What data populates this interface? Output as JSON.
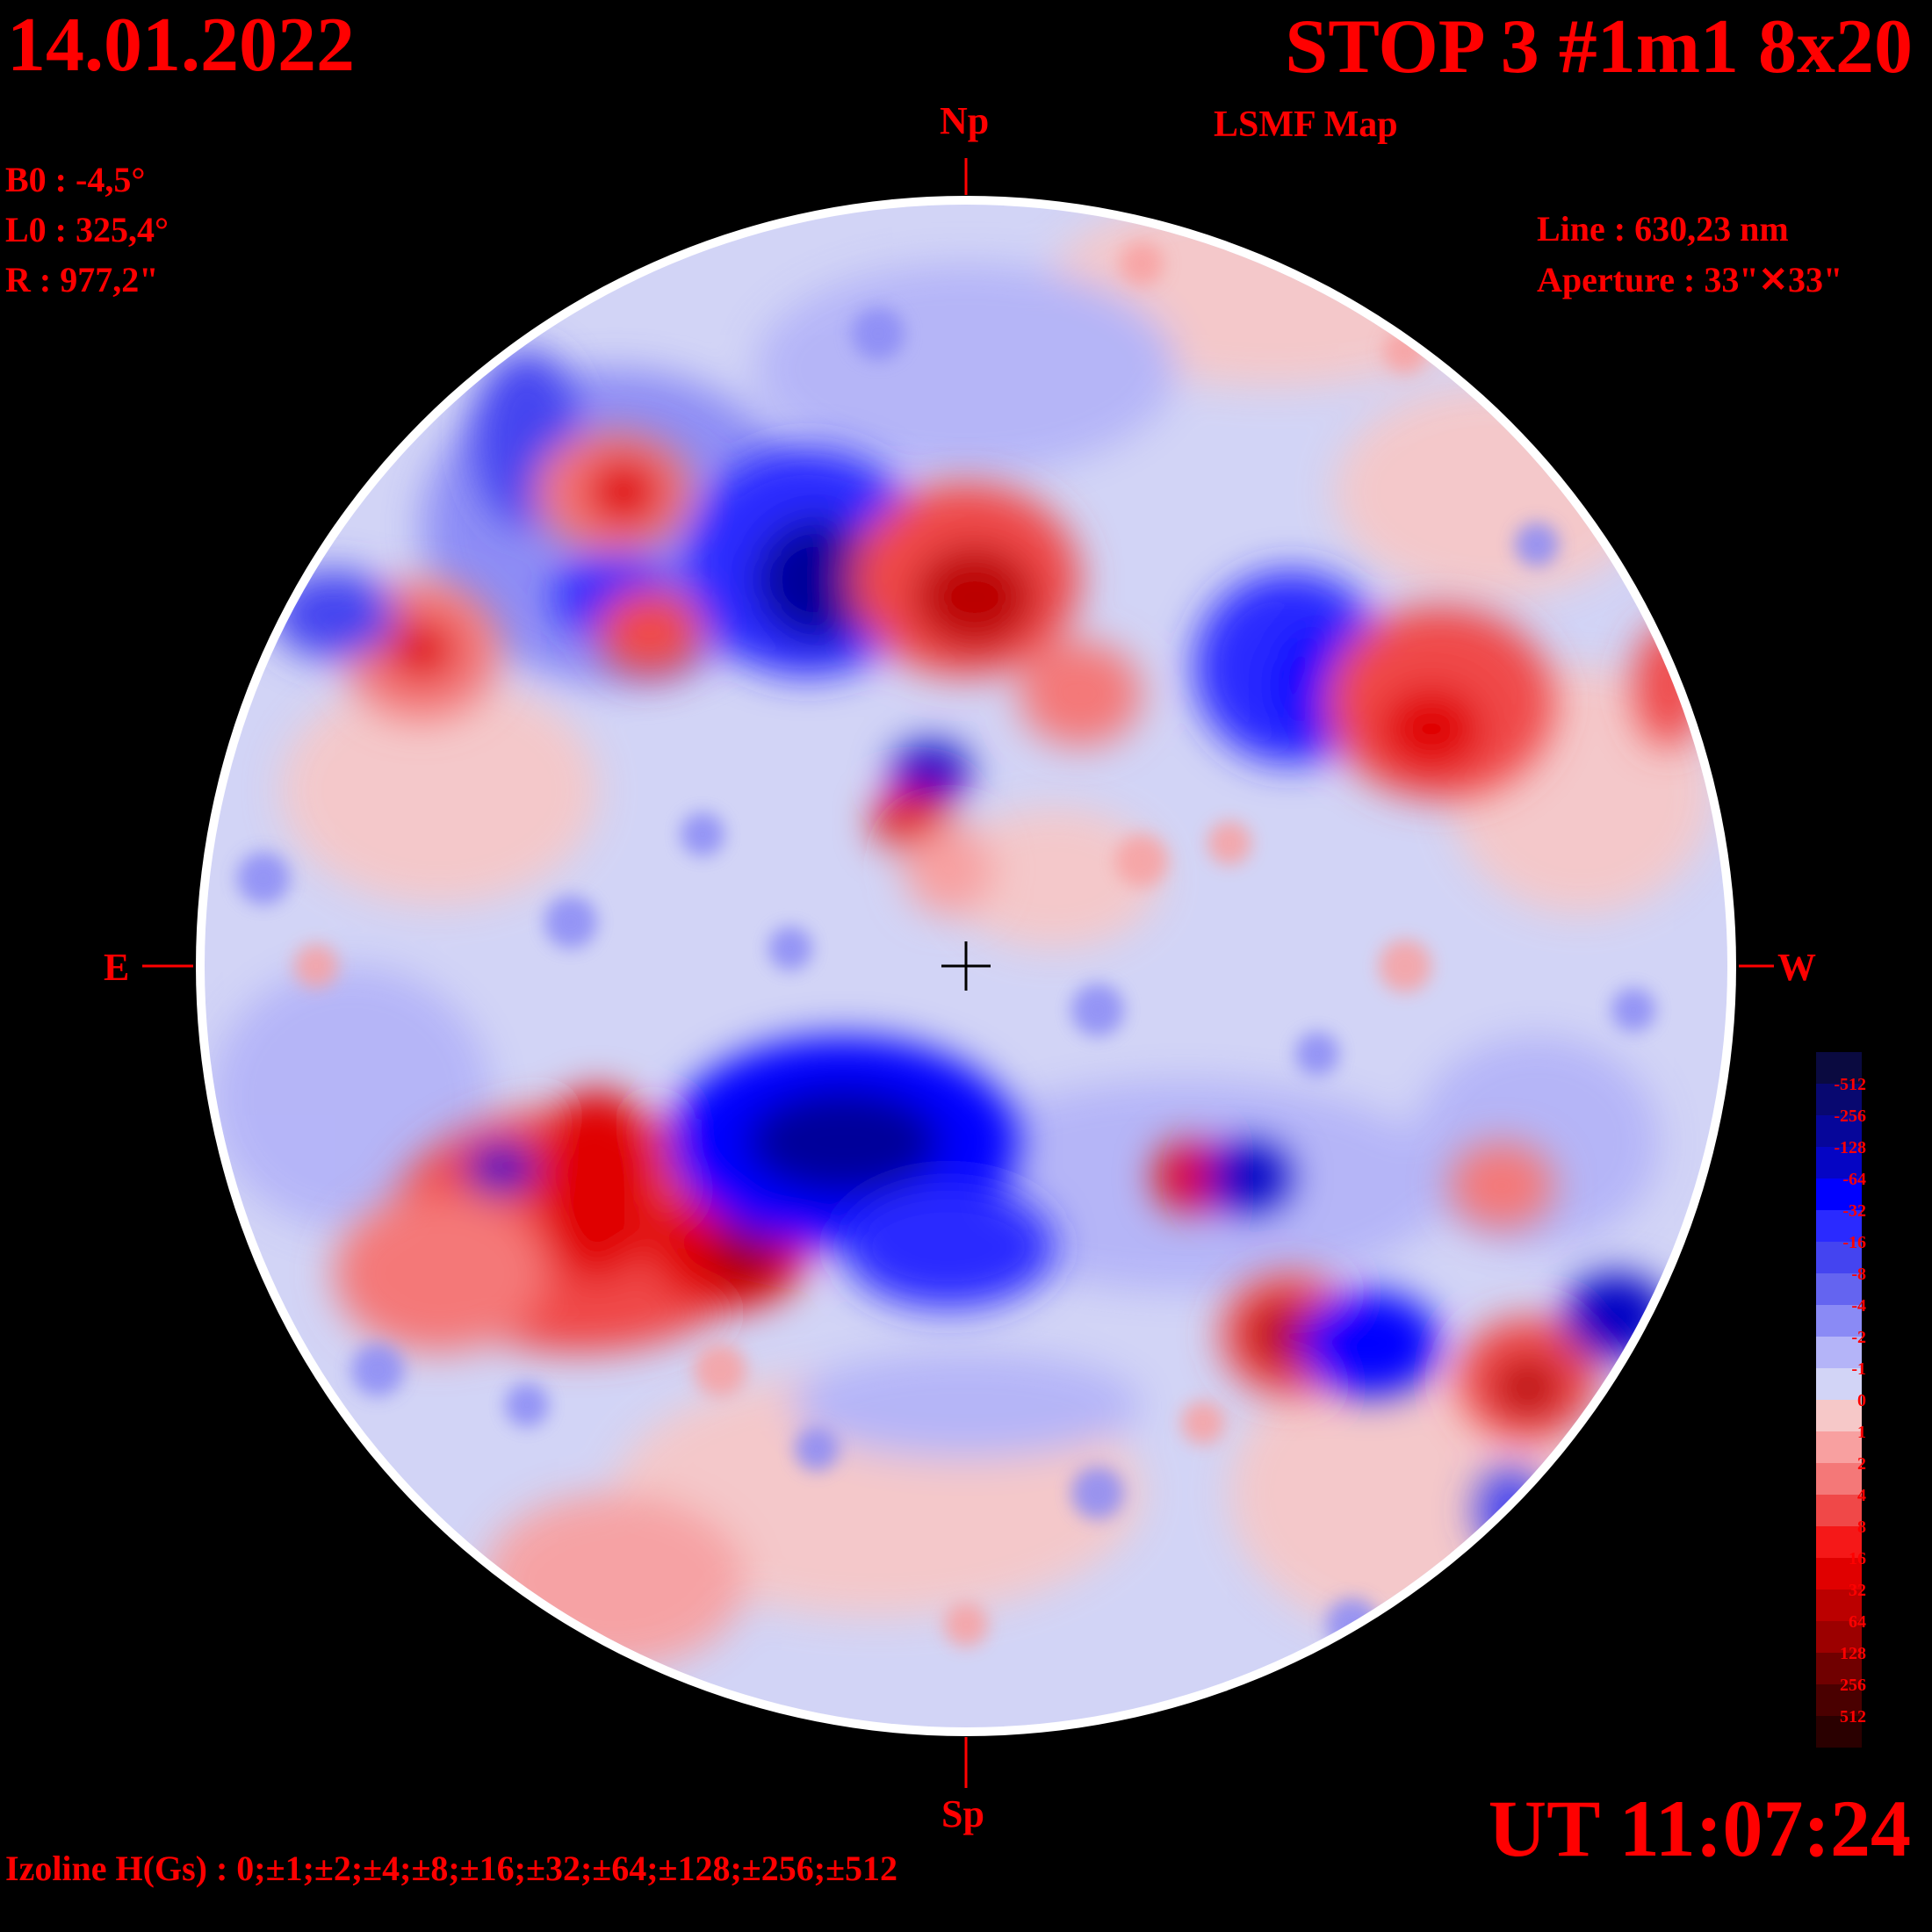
{
  "header": {
    "date": "14.01.2022",
    "title": "STOP 3 #1m1 8x20",
    "subtitle": "LSMF  Map"
  },
  "params": {
    "b0": "B0 : -4,5°",
    "l0": "L0 : 325,4°",
    "r": "R  : 977,2\""
  },
  "observation": {
    "line": "Line :  630,23 nm",
    "aperture": "Aperture : 33\"✕33\""
  },
  "directions": {
    "north": "Np",
    "south": "Sp",
    "east": "E",
    "west": "W"
  },
  "footer": {
    "ut": "UT 11:07:24",
    "izoline": "Izoline H(Gs) : 0;±1;±2;±4;±8;±16;±32;±64;±128;±256;±512"
  },
  "colorbar": {
    "labels": [
      "-512",
      "-256",
      "-128",
      "-64",
      "-32",
      "-16",
      "-8",
      "-4",
      "-2",
      "-1",
      "0",
      "1",
      "2",
      "4",
      "8",
      "16",
      "32",
      "64",
      "128",
      "256",
      "512"
    ],
    "colors": [
      "#0a0a40",
      "#080870",
      "#06069a",
      "#0505c4",
      "#0000ff",
      "#2a2aff",
      "#4444f0",
      "#6464f0",
      "#8a8af5",
      "#b4b4f8",
      "#d2d4f6",
      "#f6c8c8",
      "#f8a0a0",
      "#f47878",
      "#f04848",
      "#f51818",
      "#e00000",
      "#bb0000",
      "#9c0000",
      "#700000",
      "#4a0000",
      "#2a0000"
    ]
  }
}
